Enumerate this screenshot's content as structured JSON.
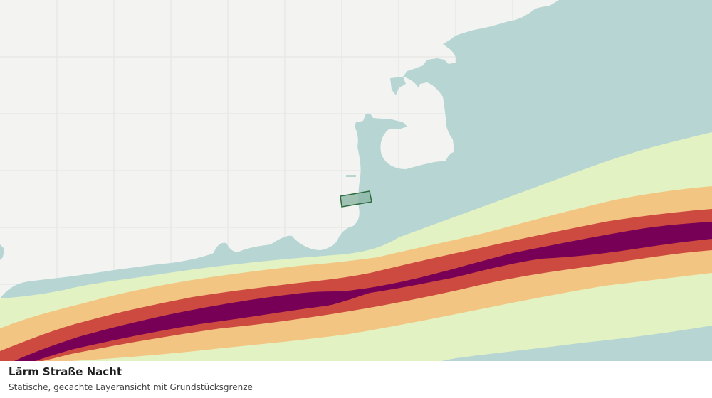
{
  "caption": {
    "title": "Lärm Straße Nacht",
    "subtitle": "Statische, gecachte Layeransicht mit Grundstücksgrenze"
  },
  "map": {
    "layer": "noise-road-night",
    "colors": {
      "land": "#f3f4f2",
      "grid": "#e3e5e3",
      "water": "#b7d6d3",
      "noise_band_1": "#e3f2c2",
      "noise_band_2": "#f3c583",
      "noise_band_3": "#cc4a40",
      "noise_band_4": "#770056",
      "parcel_fill": "#8fb9a8",
      "parcel_stroke": "#2f6b3f"
    },
    "parcel": {
      "name": "parcel-boundary"
    }
  }
}
